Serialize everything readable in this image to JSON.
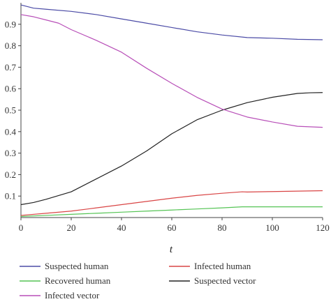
{
  "chart_data": {
    "type": "line",
    "xlabel": "t",
    "ylabel": "",
    "xlim": [
      0,
      120
    ],
    "ylim": [
      0,
      1.0
    ],
    "xticks": [
      0,
      20,
      40,
      60,
      80,
      100,
      120
    ],
    "yticks": [
      0.1,
      0.2,
      0.3,
      0.4,
      0.5,
      0.6,
      0.7,
      0.8,
      0.9
    ],
    "ytick_labels": [
      "0.1",
      "0.2",
      "0.3",
      "0.4",
      "0.5",
      "0.6",
      "0.7",
      "0.8",
      "0.9"
    ],
    "grid": false,
    "legend_position": "bottom",
    "series": [
      {
        "name": "Suspected human",
        "color": "#4b4ba6",
        "x": [
          0,
          5,
          10,
          20,
          30,
          40,
          50,
          60,
          70,
          80,
          90,
          100,
          110,
          120
        ],
        "y": [
          0.99,
          0.975,
          0.97,
          0.96,
          0.945,
          0.925,
          0.905,
          0.885,
          0.865,
          0.85,
          0.838,
          0.835,
          0.83,
          0.828
        ]
      },
      {
        "name": "Infected human",
        "color": "#d94545",
        "x": [
          0,
          10,
          20,
          30,
          40,
          50,
          60,
          70,
          80,
          88,
          90,
          100,
          110,
          120
        ],
        "y": [
          0.01,
          0.02,
          0.03,
          0.045,
          0.06,
          0.075,
          0.09,
          0.103,
          0.113,
          0.12,
          0.119,
          0.121,
          0.123,
          0.125
        ]
      },
      {
        "name": "Recovered human",
        "color": "#55c455",
        "x": [
          0,
          10,
          20,
          30,
          40,
          50,
          60,
          70,
          80,
          88,
          90,
          100,
          110,
          120
        ],
        "y": [
          0.005,
          0.01,
          0.015,
          0.02,
          0.025,
          0.03,
          0.035,
          0.04,
          0.045,
          0.05,
          0.05,
          0.05,
          0.05,
          0.05
        ]
      },
      {
        "name": "Suspected vector",
        "color": "#222222",
        "x": [
          0,
          5,
          10,
          20,
          30,
          40,
          50,
          60,
          70,
          80,
          90,
          100,
          110,
          115,
          120
        ],
        "y": [
          0.06,
          0.07,
          0.085,
          0.12,
          0.18,
          0.24,
          0.31,
          0.39,
          0.455,
          0.5,
          0.535,
          0.56,
          0.578,
          0.581,
          0.582
        ]
      },
      {
        "name": "Infected vector",
        "color": "#b84fb8",
        "x": [
          0,
          5,
          10,
          15,
          20,
          30,
          40,
          50,
          60,
          70,
          80,
          90,
          100,
          110,
          120
        ],
        "y": [
          0.945,
          0.935,
          0.92,
          0.905,
          0.875,
          0.825,
          0.77,
          0.695,
          0.625,
          0.56,
          0.505,
          0.468,
          0.445,
          0.425,
          0.42
        ]
      }
    ],
    "legend_order": [
      "Suspected human",
      "Infected human",
      "Recovered human",
      "Suspected vector",
      "Infected vector"
    ]
  }
}
